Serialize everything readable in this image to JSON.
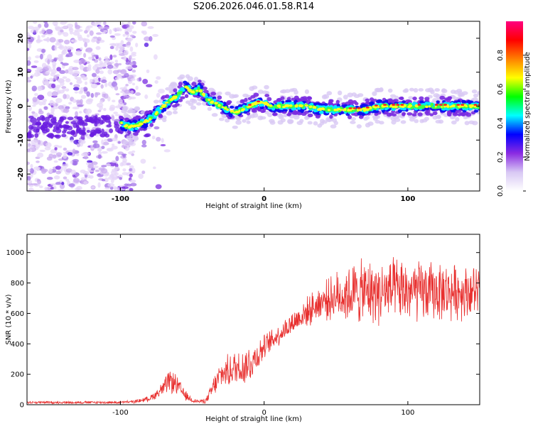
{
  "title": "S206.2026.046.01.58.R14",
  "chart_data": [
    {
      "type": "heatmap",
      "name": "spectrogram",
      "xlabel": "Height of straight line (km)",
      "ylabel": "Frequency (Hz)",
      "xlim": [
        -165,
        150
      ],
      "ylim": [
        -25,
        25
      ],
      "x_ticks": [
        -100,
        0,
        100
      ],
      "y_ticks": [
        -20,
        -10,
        0,
        10,
        20
      ],
      "colorbar": {
        "label": "Normalized spectral amplitude",
        "range": [
          0,
          1
        ],
        "ticks": [
          "0.0",
          "0.2",
          "0.4",
          "0.6",
          "0.8"
        ],
        "tick_values": [
          0.0,
          0.2,
          0.4,
          0.6,
          0.8
        ],
        "stops": [
          "#ffffff",
          "#d8c8f4",
          "#8a2be2",
          "#0000ff",
          "#00ffff",
          "#00ff00",
          "#ffff00",
          "#ff8000",
          "#ff0000",
          "#ff0080"
        ]
      },
      "ridge": {
        "x": [
          -100,
          -95,
          -90,
          -85,
          -80,
          -75,
          -70,
          -65,
          -60,
          -55,
          -50,
          -45,
          -40,
          -35,
          -30,
          -25,
          -20,
          -15,
          -10,
          -5,
          0,
          5,
          10,
          20,
          30,
          40,
          50,
          60,
          70,
          80,
          90,
          100,
          110,
          120,
          130,
          140,
          150
        ],
        "y": [
          -5,
          -6,
          -6,
          -5,
          -4,
          -2,
          0,
          2,
          3,
          6,
          4,
          5,
          2,
          1,
          0,
          -1,
          -2,
          -1,
          0,
          1,
          1,
          0,
          0,
          0,
          0,
          -1,
          -1,
          -1,
          -1,
          0,
          0,
          0,
          0,
          0,
          0,
          0,
          0
        ]
      },
      "noise_region_km": [
        -165,
        -90
      ]
    },
    {
      "type": "line",
      "name": "snr",
      "xlabel": "Height of straight line (km)",
      "ylabel": "SNR (10 * v/v)",
      "xlim": [
        -165,
        150
      ],
      "ylim": [
        0,
        1120
      ],
      "x_ticks": [
        -100,
        0,
        100
      ],
      "y_ticks": [
        0,
        200,
        400,
        600,
        800,
        1000
      ],
      "color": "#e8302f",
      "envelope": {
        "x": [
          -165,
          -140,
          -120,
          -100,
          -90,
          -80,
          -75,
          -70,
          -65,
          -60,
          -55,
          -50,
          -45,
          -40,
          -35,
          -30,
          -25,
          -20,
          -15,
          -10,
          -5,
          0,
          10,
          20,
          30,
          40,
          50,
          60,
          70,
          80,
          90,
          100,
          110,
          120,
          130,
          140,
          150
        ],
        "mean": [
          15,
          15,
          15,
          15,
          20,
          40,
          70,
          110,
          160,
          120,
          60,
          30,
          20,
          30,
          120,
          200,
          220,
          240,
          250,
          270,
          320,
          380,
          460,
          540,
          610,
          680,
          710,
          730,
          740,
          740,
          745,
          745,
          740,
          745,
          740,
          745,
          745
        ],
        "spread": [
          10,
          10,
          10,
          10,
          12,
          20,
          35,
          60,
          90,
          70,
          40,
          20,
          12,
          25,
          80,
          100,
          120,
          140,
          150,
          150,
          120,
          90,
          80,
          90,
          110,
          130,
          180,
          230,
          240,
          240,
          240,
          240,
          230,
          220,
          210,
          200,
          190
        ]
      }
    }
  ]
}
